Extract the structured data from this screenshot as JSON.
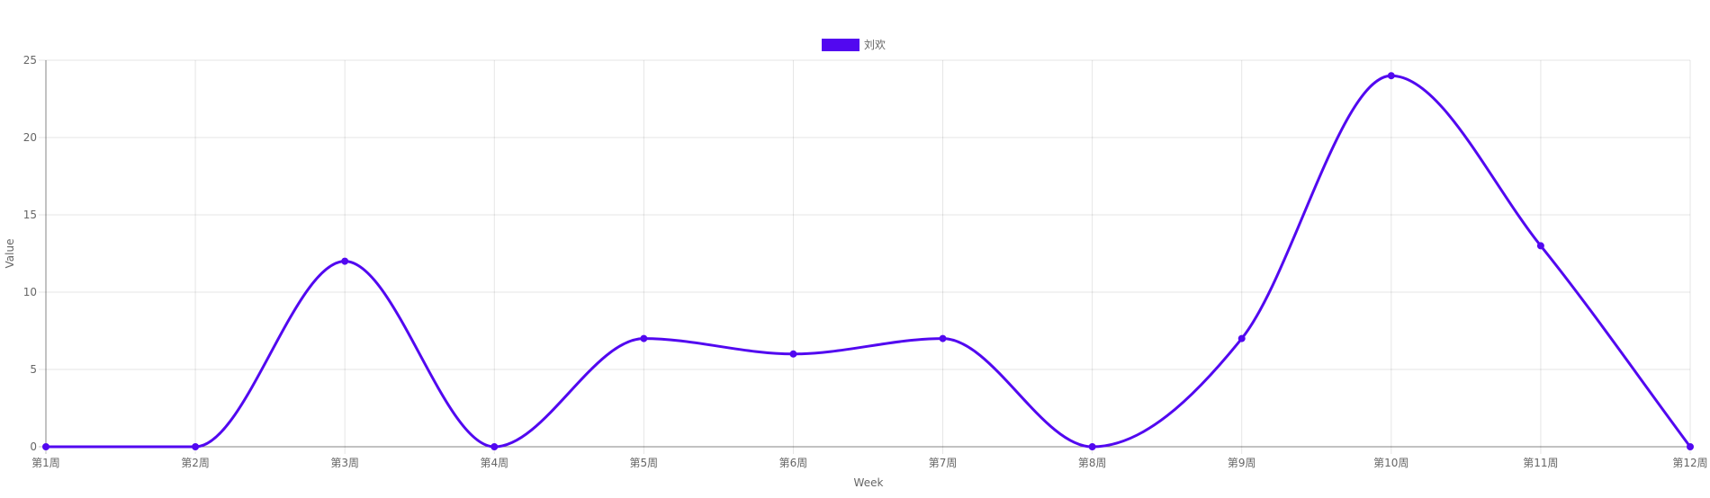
{
  "chart_data": {
    "type": "line",
    "categories": [
      "第1周",
      "第2周",
      "第3周",
      "第4周",
      "第5周",
      "第6周",
      "第7周",
      "第8周",
      "第9周",
      "第10周",
      "第11周",
      "第12周"
    ],
    "series": [
      {
        "name": "刘欢",
        "values": [
          0,
          0,
          12,
          0,
          7,
          6,
          7,
          0,
          7,
          24,
          13,
          0
        ],
        "color": "#5208f0"
      }
    ],
    "title": "",
    "xlabel": "Week",
    "ylabel": "Value",
    "ylim": [
      0,
      25
    ],
    "yticks": [
      "0",
      "5",
      "10",
      "15",
      "20",
      "25"
    ],
    "grid": true,
    "smooth": true,
    "legend_position": "top-center"
  }
}
